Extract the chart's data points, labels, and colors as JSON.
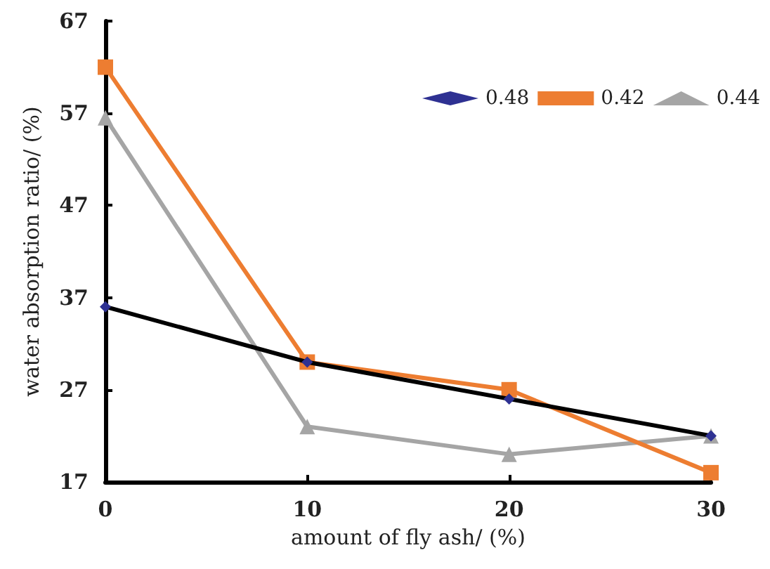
{
  "chart_data": {
    "type": "line",
    "xlabel": "amount of fly ash/ (%)",
    "ylabel": "water absorption ratio/ (%)",
    "x": [
      0,
      10,
      20,
      30
    ],
    "xlim": [
      0,
      30
    ],
    "xticks": [
      0,
      10,
      20,
      30
    ],
    "ylim": [
      17,
      67
    ],
    "yticks": [
      17,
      27,
      37,
      47,
      57,
      67
    ],
    "grid": false,
    "legend": "top right",
    "line_style": "solid",
    "series": [
      {
        "name": "0.48",
        "color": "#000000",
        "marker": "diamond",
        "values": [
          36,
          30,
          26,
          22
        ]
      },
      {
        "name": "0.42",
        "color": "#ed7d31",
        "marker": "square",
        "values": [
          62,
          30,
          27,
          18
        ]
      },
      {
        "name": "0.44",
        "color": "#a5a5a5",
        "marker": "triangle",
        "values": [
          56.5,
          23,
          20,
          22
        ]
      }
    ]
  }
}
